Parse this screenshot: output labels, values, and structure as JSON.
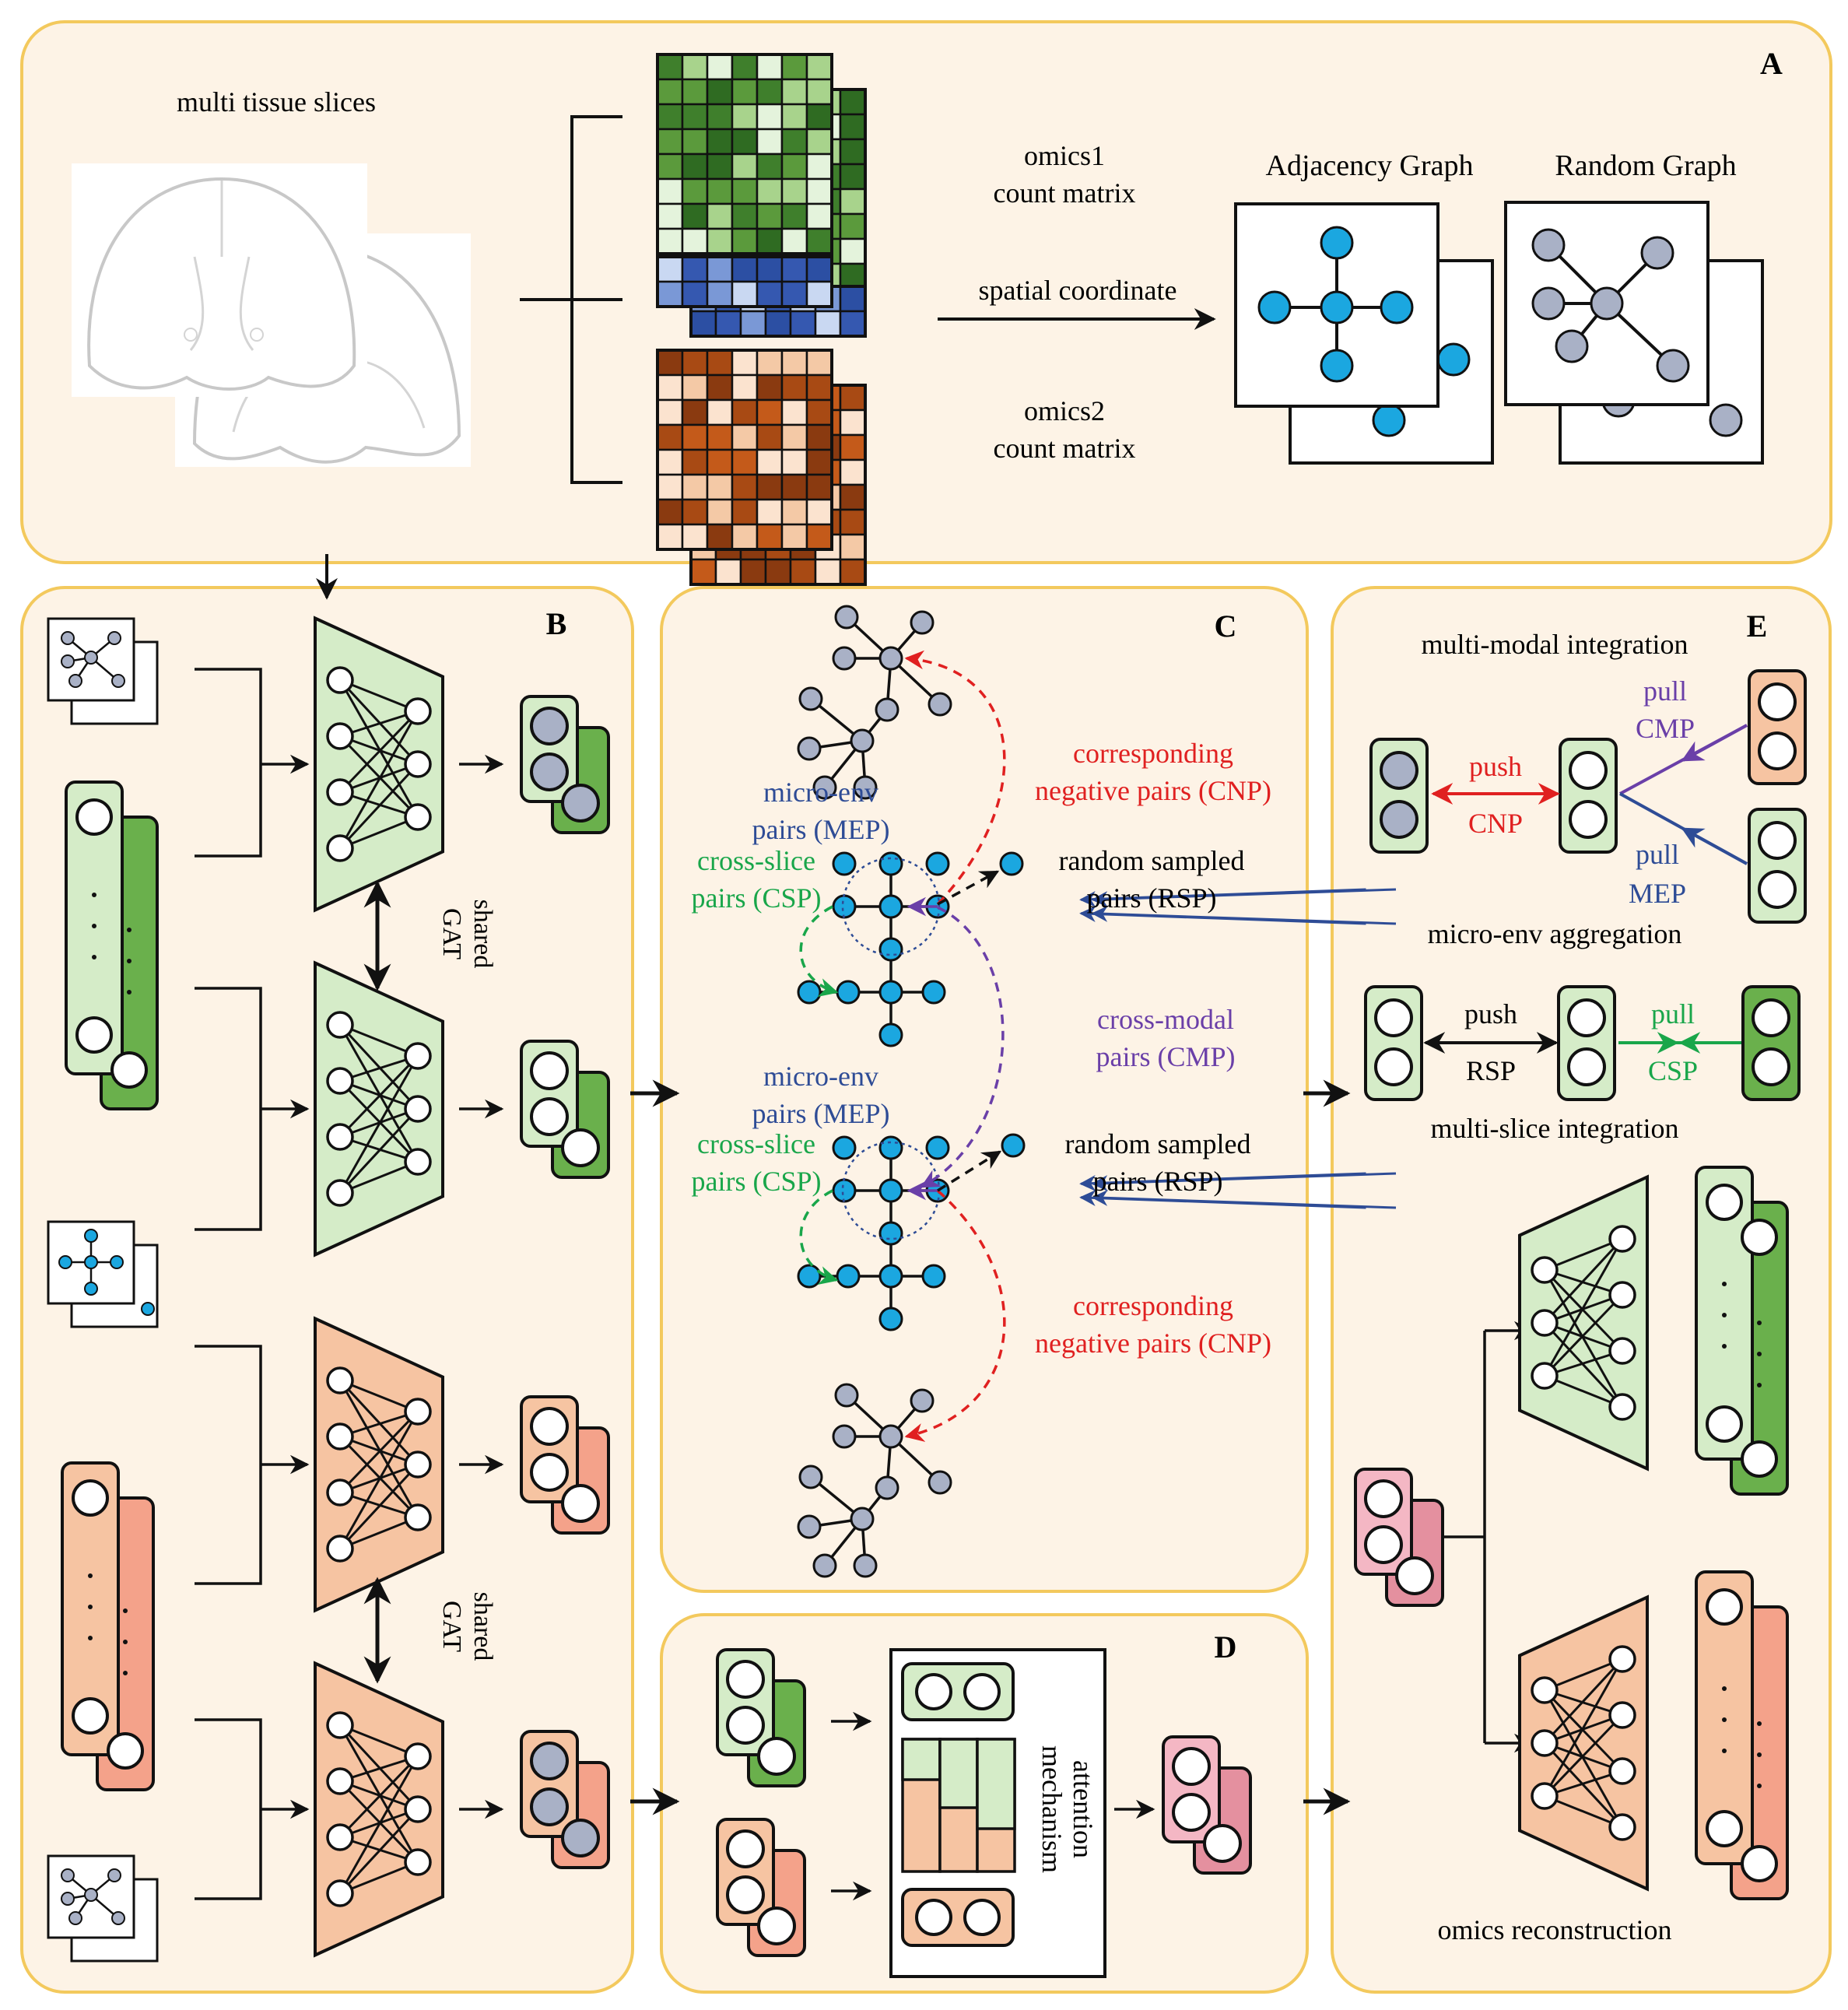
{
  "colors": {
    "panel_fill": "#fdf3e6",
    "panel_stroke": "#f3c95d",
    "green_light": "#d5ecc8",
    "green_dark": "#6ab04c",
    "orange_light": "#f6c4a2",
    "orange_dark": "#f4a28a",
    "pink_light": "#f4b7c4",
    "pink_dark": "#e4909f",
    "node_blue": "#1ba7e0",
    "node_gray": "#a9b1c6",
    "red": "#e02020",
    "purple": "#6a3fa8",
    "navy": "#2e4c96",
    "green_text": "#19a64a"
  },
  "panelA": {
    "label": "A",
    "slices_title": "multi tissue slices",
    "omics1": [
      "omics1",
      "count matrix"
    ],
    "spatial": "spatial coordinate",
    "omics2": [
      "omics2",
      "count matrix"
    ],
    "adjacency": "Adjacency Graph",
    "random": "Random Graph"
  },
  "panelB": {
    "label": "B",
    "shared_gat_1": [
      "shared",
      "GAT"
    ],
    "shared_gat_2": [
      "shared",
      "GAT"
    ]
  },
  "panelC": {
    "label": "C",
    "cnp_top": [
      "corresponding",
      "negative pairs (CNP)"
    ],
    "mep_top": [
      "micro-env",
      "pairs (MEP)"
    ],
    "csp_top": [
      "cross-slice",
      "pairs (CSP)"
    ],
    "rsp_top": [
      "random sampled",
      "pairs (RSP)"
    ],
    "cmp": [
      "cross-modal",
      "pairs (CMP)"
    ],
    "mep_bottom": [
      "micro-env",
      "pairs (MEP)"
    ],
    "csp_bottom": [
      "cross-slice",
      "pairs (CSP)"
    ],
    "rsp_bottom": [
      "random sampled",
      "pairs (RSP)"
    ],
    "cnp_bottom": [
      "corresponding",
      "negative pairs (CNP)"
    ]
  },
  "panelD": {
    "label": "D",
    "attention": [
      "attention",
      "mechanism"
    ]
  },
  "panelE": {
    "label": "E",
    "mm_title": "multi-modal integration",
    "push1": "push",
    "cnp": "CNP",
    "pull_cmp": [
      "pull",
      "CMP"
    ],
    "pull_mep": [
      "pull",
      "MEP"
    ],
    "microenv_title": "micro-env aggregation",
    "push2": "push",
    "rsp": "RSP",
    "pull_csp": [
      "pull",
      "CSP"
    ],
    "ms_title": "multi-slice integration",
    "recon_title": "omics reconstruction"
  }
}
